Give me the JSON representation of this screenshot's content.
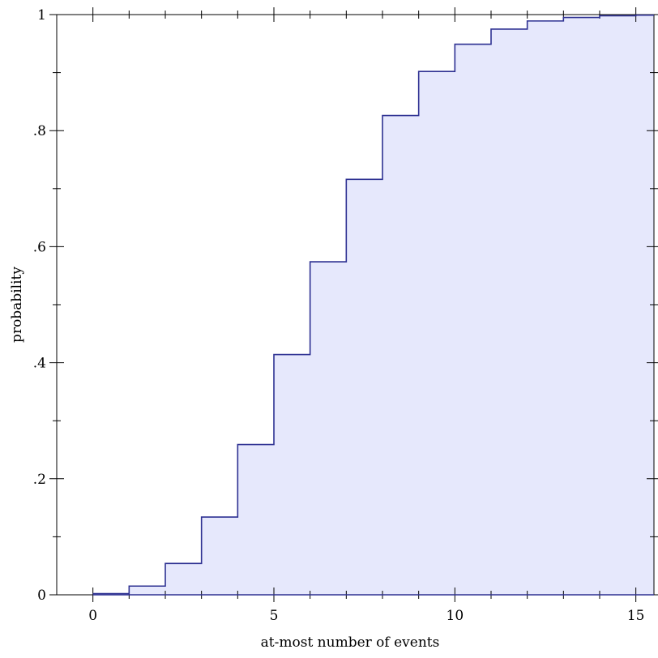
{
  "chart_data": {
    "type": "area",
    "xlabel": "at-most number of events",
    "ylabel": "probability",
    "xlim": [
      -1,
      15.5
    ],
    "ylim": [
      0,
      1
    ],
    "x_ticks": [
      0,
      5,
      10,
      15
    ],
    "x_tick_labels": [
      "0",
      "5",
      "10",
      "15"
    ],
    "y_ticks": [
      0,
      0.2,
      0.4,
      0.6,
      0.8,
      1
    ],
    "y_tick_labels": [
      "0",
      ".2",
      ".4",
      ".6",
      ".8",
      "1"
    ],
    "grid": false,
    "step": true,
    "line_color": "#2e3192",
    "fill_color": "#e6e8fc",
    "series": [
      {
        "x": [
          0,
          1,
          2,
          3,
          4,
          5,
          6,
          7,
          8,
          9,
          10,
          11,
          12,
          13,
          14,
          15
        ],
        "values": [
          0.002,
          0.015,
          0.054,
          0.134,
          0.259,
          0.414,
          0.574,
          0.716,
          0.826,
          0.902,
          0.949,
          0.975,
          0.989,
          0.995,
          0.998,
          0.999
        ]
      }
    ]
  }
}
